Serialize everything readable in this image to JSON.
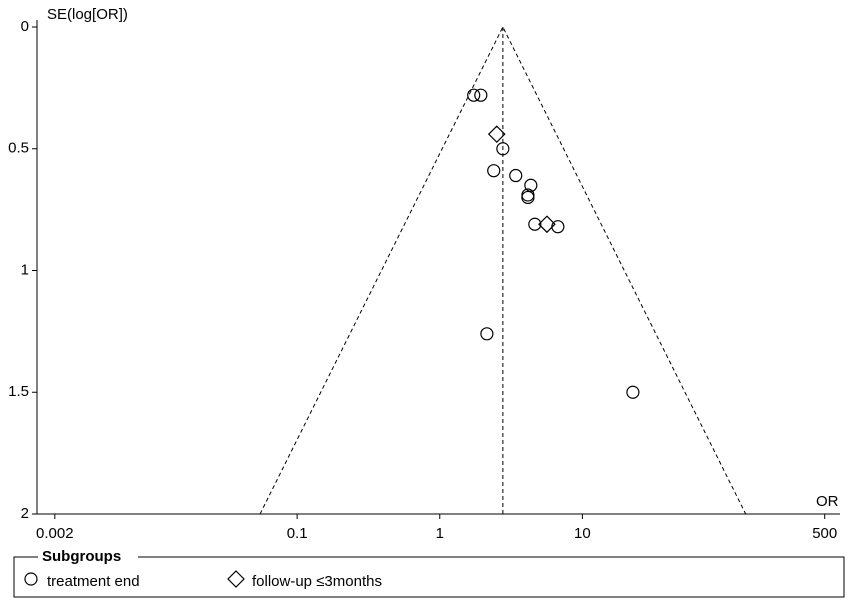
{
  "chart_data": {
    "type": "funnel",
    "y_label": "SE(log[OR])",
    "x_label": "OR",
    "x_scale": "log",
    "y_inverted": true,
    "xlim": [
      0.0015,
      640
    ],
    "xticks": [
      0.002,
      0.1,
      1,
      10,
      500
    ],
    "ylim": [
      0,
      2
    ],
    "yticks": [
      0,
      0.5,
      1,
      1.5,
      2
    ],
    "pooled_or": 2.77,
    "legend_title": "Subgroups",
    "series": [
      {
        "name": "treatment end",
        "marker": "circle",
        "color": "#000000",
        "x": [
          1.73,
          1.94,
          2.77,
          2.39,
          3.41,
          4.35,
          4.15,
          4.15,
          4.64,
          6.73,
          2.14,
          22.6
        ],
        "values": [
          0.28,
          0.28,
          0.5,
          0.59,
          0.61,
          0.65,
          0.69,
          0.7,
          0.81,
          0.82,
          1.26,
          1.5
        ]
      },
      {
        "name": "follow-up ≤3months",
        "marker": "diamond",
        "color": "#000000",
        "x": [
          2.51,
          5.64
        ],
        "values": [
          0.44,
          0.81
        ]
      }
    ]
  }
}
